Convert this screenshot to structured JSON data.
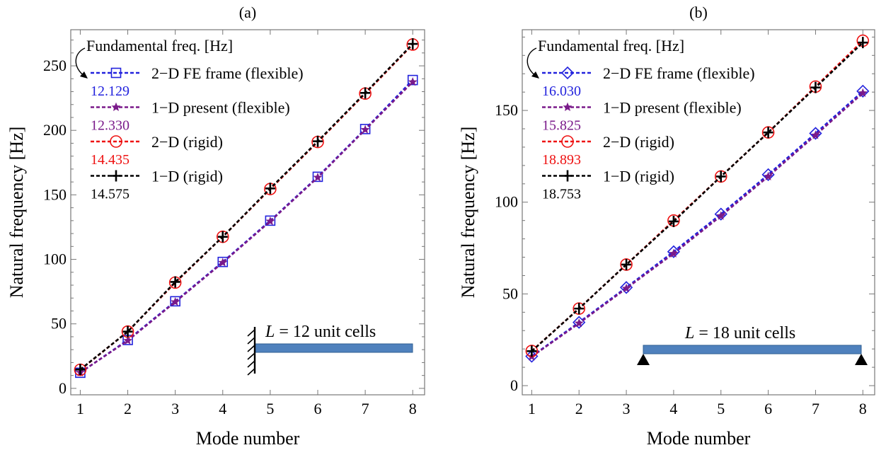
{
  "chart_data": [
    {
      "type": "line",
      "panel_label": "(a)",
      "xlabel": "Mode number",
      "ylabel": "Natural frequency [Hz]",
      "xlim": [
        0.8,
        8.25
      ],
      "ylim": [
        -5,
        278
      ],
      "x_ticks": [
        1,
        2,
        3,
        4,
        5,
        6,
        7,
        8
      ],
      "y_ticks": [
        0,
        50,
        100,
        150,
        200,
        250
      ],
      "x": [
        1,
        2,
        3,
        4,
        5,
        6,
        7,
        8
      ],
      "legend_title": "Fundamental freq. [Hz]",
      "series": [
        {
          "name": "2−D FE frame (flexible)",
          "fundamental": "12.129",
          "marker": "square",
          "color": "#2222dd",
          "values": [
            12.1,
            37.5,
            67.5,
            98.0,
            130.0,
            164.0,
            201.0,
            239.0
          ]
        },
        {
          "name": "1−D present (flexible)",
          "fundamental": "12.330",
          "marker": "star",
          "color": "#7a1a8a",
          "values": [
            12.3,
            37.0,
            67.0,
            97.5,
            129.5,
            163.5,
            200.5,
            237.5
          ]
        },
        {
          "name": "2−D (rigid)",
          "fundamental": "14.435",
          "marker": "circle",
          "color": "#ee1111",
          "values": [
            14.4,
            44.0,
            82.0,
            117.5,
            154.5,
            191.0,
            228.5,
            266.5
          ]
        },
        {
          "name": "1−D (rigid)",
          "fundamental": "14.575",
          "marker": "plus",
          "color": "#000000",
          "values": [
            14.6,
            44.0,
            82.5,
            117.5,
            155.0,
            191.5,
            229.0,
            267.0
          ]
        }
      ],
      "annotation": {
        "prefix": "L",
        "text": " = 12 unit cells",
        "support": "cantilever"
      }
    },
    {
      "type": "line",
      "panel_label": "(b)",
      "xlabel": "Mode number",
      "ylabel": "Natural frequency [Hz]",
      "xlim": [
        0.8,
        8.25
      ],
      "ylim": [
        -5,
        194
      ],
      "x_ticks": [
        1,
        2,
        3,
        4,
        5,
        6,
        7,
        8
      ],
      "y_ticks": [
        0,
        50,
        100,
        150
      ],
      "x": [
        1,
        2,
        3,
        4,
        5,
        6,
        7,
        8
      ],
      "legend_title": "Fundamental freq. [Hz]",
      "series": [
        {
          "name": "2−D FE frame (flexible)",
          "fundamental": "16.030",
          "marker": "diamond",
          "color": "#2222dd",
          "values": [
            16.0,
            34.5,
            53.5,
            73.0,
            93.5,
            115.0,
            137.5,
            160.5
          ]
        },
        {
          "name": "1−D present (flexible)",
          "fundamental": "15.825",
          "marker": "star",
          "color": "#7a1a8a",
          "values": [
            15.8,
            34.0,
            53.0,
            72.0,
            92.5,
            114.0,
            136.5,
            159.5
          ]
        },
        {
          "name": "2−D (rigid)",
          "fundamental": "18.893",
          "marker": "circle",
          "color": "#ee1111",
          "values": [
            18.9,
            42.0,
            66.0,
            90.0,
            114.0,
            138.0,
            163.0,
            188.0
          ]
        },
        {
          "name": "1−D (rigid)",
          "fundamental": "18.753",
          "marker": "plus",
          "color": "#000000",
          "values": [
            18.8,
            42.0,
            66.0,
            89.5,
            114.0,
            138.0,
            162.5,
            187.0
          ]
        }
      ],
      "annotation": {
        "prefix": "L",
        "text": " = 18 unit cells",
        "support": "simply-supported"
      }
    }
  ]
}
